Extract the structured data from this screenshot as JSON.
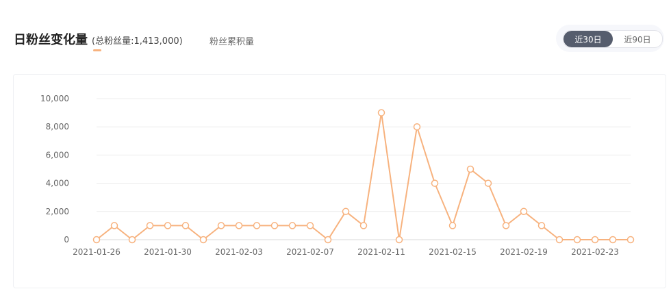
{
  "header": {
    "title": "日粉丝变化量",
    "total_text": "(总粉丝量:1,413,000)",
    "cumulative_tab": "粉丝累积量"
  },
  "range": {
    "days30": "近30日",
    "days90": "近90日",
    "selected": "近30日"
  },
  "colors": {
    "line": "#f7b27e",
    "point_fill": "#ffffff",
    "grid": "#ececec"
  },
  "chart_data": {
    "type": "line",
    "x": [
      "2021-01-26",
      "2021-01-27",
      "2021-01-28",
      "2021-01-29",
      "2021-01-30",
      "2021-01-31",
      "2021-02-01",
      "2021-02-02",
      "2021-02-03",
      "2021-02-04",
      "2021-02-05",
      "2021-02-06",
      "2021-02-07",
      "2021-02-08",
      "2021-02-09",
      "2021-02-10",
      "2021-02-11",
      "2021-02-12",
      "2021-02-13",
      "2021-02-14",
      "2021-02-15",
      "2021-02-16",
      "2021-02-17",
      "2021-02-18",
      "2021-02-19",
      "2021-02-20",
      "2021-02-21",
      "2021-02-22",
      "2021-02-23",
      "2021-02-24",
      "2021-02-25"
    ],
    "values": [
      0,
      1000,
      0,
      1000,
      1000,
      1000,
      0,
      1000,
      1000,
      1000,
      1000,
      1000,
      1000,
      0,
      2000,
      1000,
      9000,
      0,
      8000,
      4000,
      1000,
      5000,
      4000,
      1000,
      2000,
      1000,
      0,
      0,
      0,
      0,
      0
    ],
    "x_tick_labels": [
      "2021-01-26",
      "2021-01-30",
      "2021-02-03",
      "2021-02-07",
      "2021-02-11",
      "2021-02-15",
      "2021-02-19",
      "2021-02-23"
    ],
    "y_tick_labels": [
      "0",
      "2,000",
      "4,000",
      "6,000",
      "8,000",
      "10,000"
    ],
    "y_ticks": [
      0,
      2000,
      4000,
      6000,
      8000,
      10000
    ],
    "ylim": [
      0,
      10000
    ],
    "grid": true
  }
}
